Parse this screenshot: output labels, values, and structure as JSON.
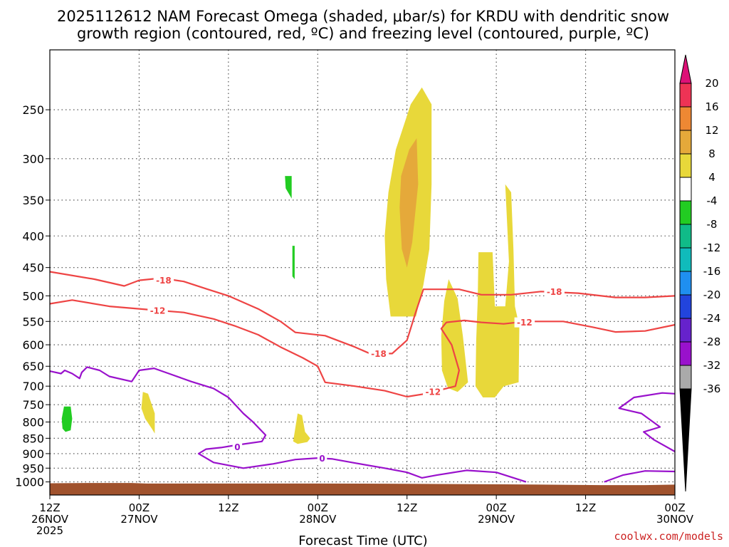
{
  "chart_data": {
    "type": "heatmap",
    "title": [
      "2025112612 NAM Forecast Omega (shaded, μbar/s) for KRDU with dendritic snow",
      "growth region (contoured, red, ºC) and freezing level (contoured, purple, ºC)"
    ],
    "xlabel": "Forecast Time (UTC)",
    "ylabel": "",
    "x_unit": "forecast hour",
    "xlim": [
      0,
      84
    ],
    "ylim_hpa": [
      1050,
      200
    ],
    "y_ticks": [
      250,
      300,
      350,
      400,
      450,
      500,
      550,
      600,
      650,
      700,
      750,
      800,
      850,
      900,
      950,
      1000
    ],
    "x_ticks": [
      {
        "x": 0,
        "lines": [
          "12Z",
          "26NOV",
          "2025"
        ]
      },
      {
        "x": 12,
        "lines": [
          "00Z",
          "27NOV"
        ]
      },
      {
        "x": 24,
        "lines": [
          "12Z"
        ]
      },
      {
        "x": 36,
        "lines": [
          "00Z",
          "28NOV"
        ]
      },
      {
        "x": 48,
        "lines": [
          "12Z"
        ]
      },
      {
        "x": 60,
        "lines": [
          "00Z",
          "29NOV"
        ]
      },
      {
        "x": 72,
        "lines": [
          "12Z"
        ]
      },
      {
        "x": 84,
        "lines": [
          "00Z",
          "30NOV"
        ]
      }
    ],
    "colorbar": {
      "labels": [
        "20",
        "16",
        "12",
        "8",
        "4",
        "-4",
        "-8",
        "-12",
        "-16",
        "-20",
        "-24",
        "-28",
        "-32",
        "-36"
      ],
      "bins": [
        "#ee3355",
        "#ee8833",
        "#e5a93a",
        "#e8d83a",
        "#ffffff",
        "#22cc22",
        "#10bb88",
        "#10bbbb",
        "#1f8ff0",
        "#2244dd",
        "#6622cc",
        "#9911cc",
        "#aaaaaa"
      ],
      "top_arrow": "#dd1177",
      "bottom_arrow": "#000000"
    },
    "omega_regions": [
      {
        "cls": "4-8",
        "color": "#e8d83a",
        "pts": [
          [
            45.8,
            540
          ],
          [
            45.2,
            470
          ],
          [
            45,
            400
          ],
          [
            45.5,
            340
          ],
          [
            46.5,
            290
          ],
          [
            48.5,
            245
          ],
          [
            50,
            230
          ],
          [
            51.3,
            245
          ],
          [
            51.3,
            330
          ],
          [
            51,
            420
          ],
          [
            50.2,
            480
          ],
          [
            49.2,
            540
          ]
        ]
      },
      {
        "cls": "8-12",
        "color": "#e5a93a",
        "pts": [
          [
            47,
            360
          ],
          [
            47.2,
            320
          ],
          [
            48.3,
            290
          ],
          [
            49.3,
            278
          ],
          [
            49.5,
            330
          ],
          [
            48.7,
            410
          ],
          [
            48,
            450
          ],
          [
            47.3,
            420
          ]
        ]
      },
      {
        "cls": "4-8",
        "color": "#e8d83a",
        "pts": [
          [
            52.7,
            660
          ],
          [
            52.6,
            580
          ],
          [
            53,
            510
          ],
          [
            53.6,
            470
          ],
          [
            54.8,
            505
          ],
          [
            55.5,
            580
          ],
          [
            56.2,
            690
          ],
          [
            54.8,
            715
          ],
          [
            53.5,
            705
          ]
        ]
      },
      {
        "cls": "4-8",
        "color": "#e8d83a",
        "pts": [
          [
            57.2,
            700
          ],
          [
            57.3,
            590
          ],
          [
            57.5,
            510
          ],
          [
            57.6,
            425
          ],
          [
            59.5,
            425
          ],
          [
            59.8,
            520
          ],
          [
            61.2,
            520
          ],
          [
            61.7,
            440
          ],
          [
            61.2,
            330
          ],
          [
            62,
            340
          ],
          [
            62.3,
            420
          ],
          [
            62.5,
            520
          ],
          [
            63.1,
            560
          ],
          [
            63,
            690
          ],
          [
            61,
            700
          ],
          [
            59.8,
            730
          ],
          [
            58.2,
            730
          ]
        ]
      },
      {
        "cls": "4-8",
        "color": "#e8d83a",
        "pts": [
          [
            12.3,
            760
          ],
          [
            12.5,
            715
          ],
          [
            13.2,
            720
          ],
          [
            14.1,
            775
          ],
          [
            14.1,
            835
          ],
          [
            13.7,
            820
          ],
          [
            12.8,
            790
          ]
        ]
      },
      {
        "cls": "4-8",
        "color": "#e8d83a",
        "pts": [
          [
            32.7,
            860
          ],
          [
            33.3,
            775
          ],
          [
            33.9,
            780
          ],
          [
            34.3,
            830
          ],
          [
            35,
            850
          ],
          [
            34.6,
            862
          ],
          [
            33.3,
            868
          ]
        ]
      },
      {
        "cls": "-4--8",
        "color": "#22cc22",
        "pts": [
          [
            31.6,
            320
          ],
          [
            32.5,
            320
          ],
          [
            32.5,
            348
          ],
          [
            31.7,
            335
          ]
        ]
      },
      {
        "cls": "-4--8",
        "color": "#22cc22",
        "pts": [
          [
            32.6,
            415
          ],
          [
            32.9,
            415
          ],
          [
            32.9,
            470
          ],
          [
            32.6,
            465
          ]
        ]
      },
      {
        "cls": "-4--8",
        "color": "#22cc22",
        "pts": [
          [
            1.7,
            820
          ],
          [
            1.6,
            790
          ],
          [
            1.9,
            755
          ],
          [
            2.8,
            755
          ],
          [
            3,
            790
          ],
          [
            2.8,
            825
          ],
          [
            2.1,
            830
          ]
        ]
      }
    ],
    "isotherms": [
      {
        "name": "-18",
        "color": "#ee4444",
        "pts": [
          [
            0,
            457
          ],
          [
            6,
            470
          ],
          [
            10,
            482
          ],
          [
            12,
            472
          ],
          [
            15,
            468
          ],
          [
            18,
            474
          ],
          [
            21,
            487
          ],
          [
            24,
            500
          ],
          [
            28,
            525
          ],
          [
            31,
            550
          ],
          [
            33,
            573
          ],
          [
            37,
            580
          ],
          [
            41,
            605
          ],
          [
            43,
            620
          ],
          [
            46,
            620
          ],
          [
            48,
            590
          ],
          [
            49.2,
            530
          ],
          [
            50.2,
            488
          ],
          [
            55,
            488
          ],
          [
            58,
            498
          ],
          [
            62,
            498
          ],
          [
            66,
            492
          ],
          [
            71,
            495
          ],
          [
            76,
            503
          ],
          [
            80,
            503
          ],
          [
            84,
            500
          ]
        ],
        "labels": [
          {
            "x": 15.3,
            "p": 472
          },
          {
            "x": 44.2,
            "p": 620
          },
          {
            "x": 67.8,
            "p": 492
          }
        ]
      },
      {
        "name": "-12",
        "color": "#ee4444",
        "pts": [
          [
            0,
            515
          ],
          [
            3,
            508
          ],
          [
            8,
            520
          ],
          [
            13,
            526
          ],
          [
            18,
            532
          ],
          [
            22,
            545
          ],
          [
            25,
            560
          ],
          [
            28,
            578
          ],
          [
            31,
            605
          ],
          [
            34,
            630
          ],
          [
            36,
            650
          ],
          [
            37,
            690
          ],
          [
            41,
            700
          ],
          [
            45,
            712
          ],
          [
            48,
            728
          ],
          [
            50.5,
            720
          ],
          [
            52.5,
            710
          ],
          [
            54.5,
            700
          ],
          [
            55,
            660
          ],
          [
            54,
            600
          ],
          [
            52.6,
            565
          ],
          [
            53.3,
            552
          ],
          [
            55.7,
            548
          ],
          [
            58,
            552
          ],
          [
            61,
            555
          ],
          [
            64,
            550
          ],
          [
            69,
            550
          ],
          [
            73,
            562
          ],
          [
            76,
            572
          ],
          [
            80,
            570
          ],
          [
            84,
            557
          ]
        ],
        "labels": [
          {
            "x": 14.5,
            "p": 528
          },
          {
            "x": 51.5,
            "p": 715
          },
          {
            "x": 63.8,
            "p": 552
          }
        ]
      }
    ],
    "freezing_levels": [
      {
        "name": "0",
        "color": "#9911cc",
        "pts": [
          [
            0,
            662
          ],
          [
            1.5,
            668
          ],
          [
            2,
            660
          ],
          [
            3,
            668
          ],
          [
            4,
            680
          ],
          [
            4.3,
            665
          ],
          [
            5,
            652
          ],
          [
            6.7,
            660
          ],
          [
            8,
            675
          ],
          [
            11,
            688
          ],
          [
            12,
            660
          ],
          [
            14,
            655
          ],
          [
            16,
            668
          ],
          [
            19,
            688
          ],
          [
            22,
            706
          ],
          [
            24,
            730
          ],
          [
            26,
            775
          ],
          [
            27.3,
            800
          ],
          [
            29,
            840
          ],
          [
            28.5,
            860
          ],
          [
            25,
            872
          ],
          [
            23,
            880
          ],
          [
            21,
            885
          ],
          [
            20,
            900
          ],
          [
            22,
            930
          ],
          [
            26,
            950
          ],
          [
            30,
            935
          ],
          [
            33,
            920
          ],
          [
            36,
            915
          ],
          [
            38,
            918
          ],
          [
            41,
            932
          ],
          [
            45,
            950
          ],
          [
            48,
            965
          ],
          [
            50,
            985
          ],
          [
            52,
            975
          ],
          [
            56,
            958
          ],
          [
            60,
            965
          ],
          [
            64,
            1000
          ]
        ],
        "labels": [
          {
            "x": 25.2,
            "p": 878
          },
          {
            "x": 36.6,
            "p": 916
          }
        ]
      },
      {
        "name": "0",
        "color": "#9911cc",
        "pts": [
          [
            74.5,
            1000
          ],
          [
            77,
            975
          ],
          [
            80,
            960
          ],
          [
            84,
            962
          ]
        ],
        "labels": []
      },
      {
        "name": "0",
        "color": "#9911cc",
        "pts": [
          [
            84,
            720
          ],
          [
            82.3,
            718
          ],
          [
            78.5,
            730
          ],
          [
            76.5,
            760
          ],
          [
            79.5,
            775
          ],
          [
            82,
            815
          ],
          [
            79.8,
            830
          ],
          [
            81.2,
            855
          ],
          [
            84,
            893
          ]
        ],
        "labels": []
      }
    ],
    "terrain": {
      "color": "#a0522d",
      "surface": [
        [
          0,
          1005
        ],
        [
          5,
          1004
        ],
        [
          11,
          1004
        ],
        [
          13,
          1006
        ],
        [
          36,
          1006
        ],
        [
          48,
          1007
        ],
        [
          61,
          1009
        ],
        [
          70,
          1011
        ],
        [
          74,
          1012
        ],
        [
          80,
          1012
        ],
        [
          84,
          1010
        ]
      ]
    },
    "credit": "coolwx.com/models"
  }
}
